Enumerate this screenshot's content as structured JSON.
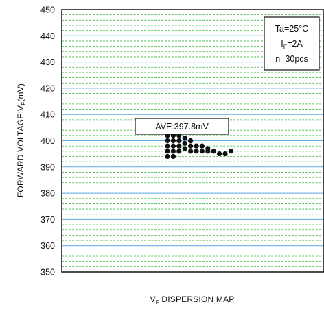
{
  "chart_data": {
    "type": "scatter",
    "xlabel_main": "V",
    "xlabel_sub": "F",
    "xlabel_rest": " DISPERSION MAP",
    "ylabel_main": "FORWARD VOLTAGE:V",
    "ylabel_sub": "F",
    "ylabel_rest": "(mV)",
    "ylim": [
      350,
      450
    ],
    "yticks": [
      "350",
      "360",
      "370",
      "380",
      "390",
      "400",
      "410",
      "420",
      "430",
      "440",
      "450"
    ],
    "grid": {
      "major": true,
      "minor": true,
      "major_color": "#5aa9e0",
      "minor_color": "#3bbf3b"
    },
    "average_label": "AVE:397.8mV",
    "conditions": {
      "line1": "Ta=25°C",
      "line2_main": "I",
      "line2_sub": "F",
      "line2_rest": "=2A",
      "line3": "n=30pcs"
    },
    "points_color": "#111111",
    "points": [
      {
        "x": 1,
        "y": 402
      },
      {
        "x": 1,
        "y": 400
      },
      {
        "x": 1,
        "y": 398
      },
      {
        "x": 1,
        "y": 396
      },
      {
        "x": 1,
        "y": 394
      },
      {
        "x": 2,
        "y": 402
      },
      {
        "x": 2,
        "y": 400
      },
      {
        "x": 2,
        "y": 398
      },
      {
        "x": 2,
        "y": 396
      },
      {
        "x": 2,
        "y": 394
      },
      {
        "x": 3,
        "y": 402
      },
      {
        "x": 3,
        "y": 400
      },
      {
        "x": 3,
        "y": 398
      },
      {
        "x": 3,
        "y": 396
      },
      {
        "x": 4,
        "y": 401
      },
      {
        "x": 4,
        "y": 399
      },
      {
        "x": 4,
        "y": 397
      },
      {
        "x": 5,
        "y": 400
      },
      {
        "x": 5,
        "y": 398
      },
      {
        "x": 5,
        "y": 396
      },
      {
        "x": 6,
        "y": 398
      },
      {
        "x": 6,
        "y": 396
      },
      {
        "x": 7,
        "y": 398
      },
      {
        "x": 7,
        "y": 396
      },
      {
        "x": 8,
        "y": 397
      },
      {
        "x": 8,
        "y": 396
      },
      {
        "x": 9,
        "y": 396
      },
      {
        "x": 10,
        "y": 395
      },
      {
        "x": 11,
        "y": 395
      },
      {
        "x": 12,
        "y": 396
      }
    ]
  }
}
